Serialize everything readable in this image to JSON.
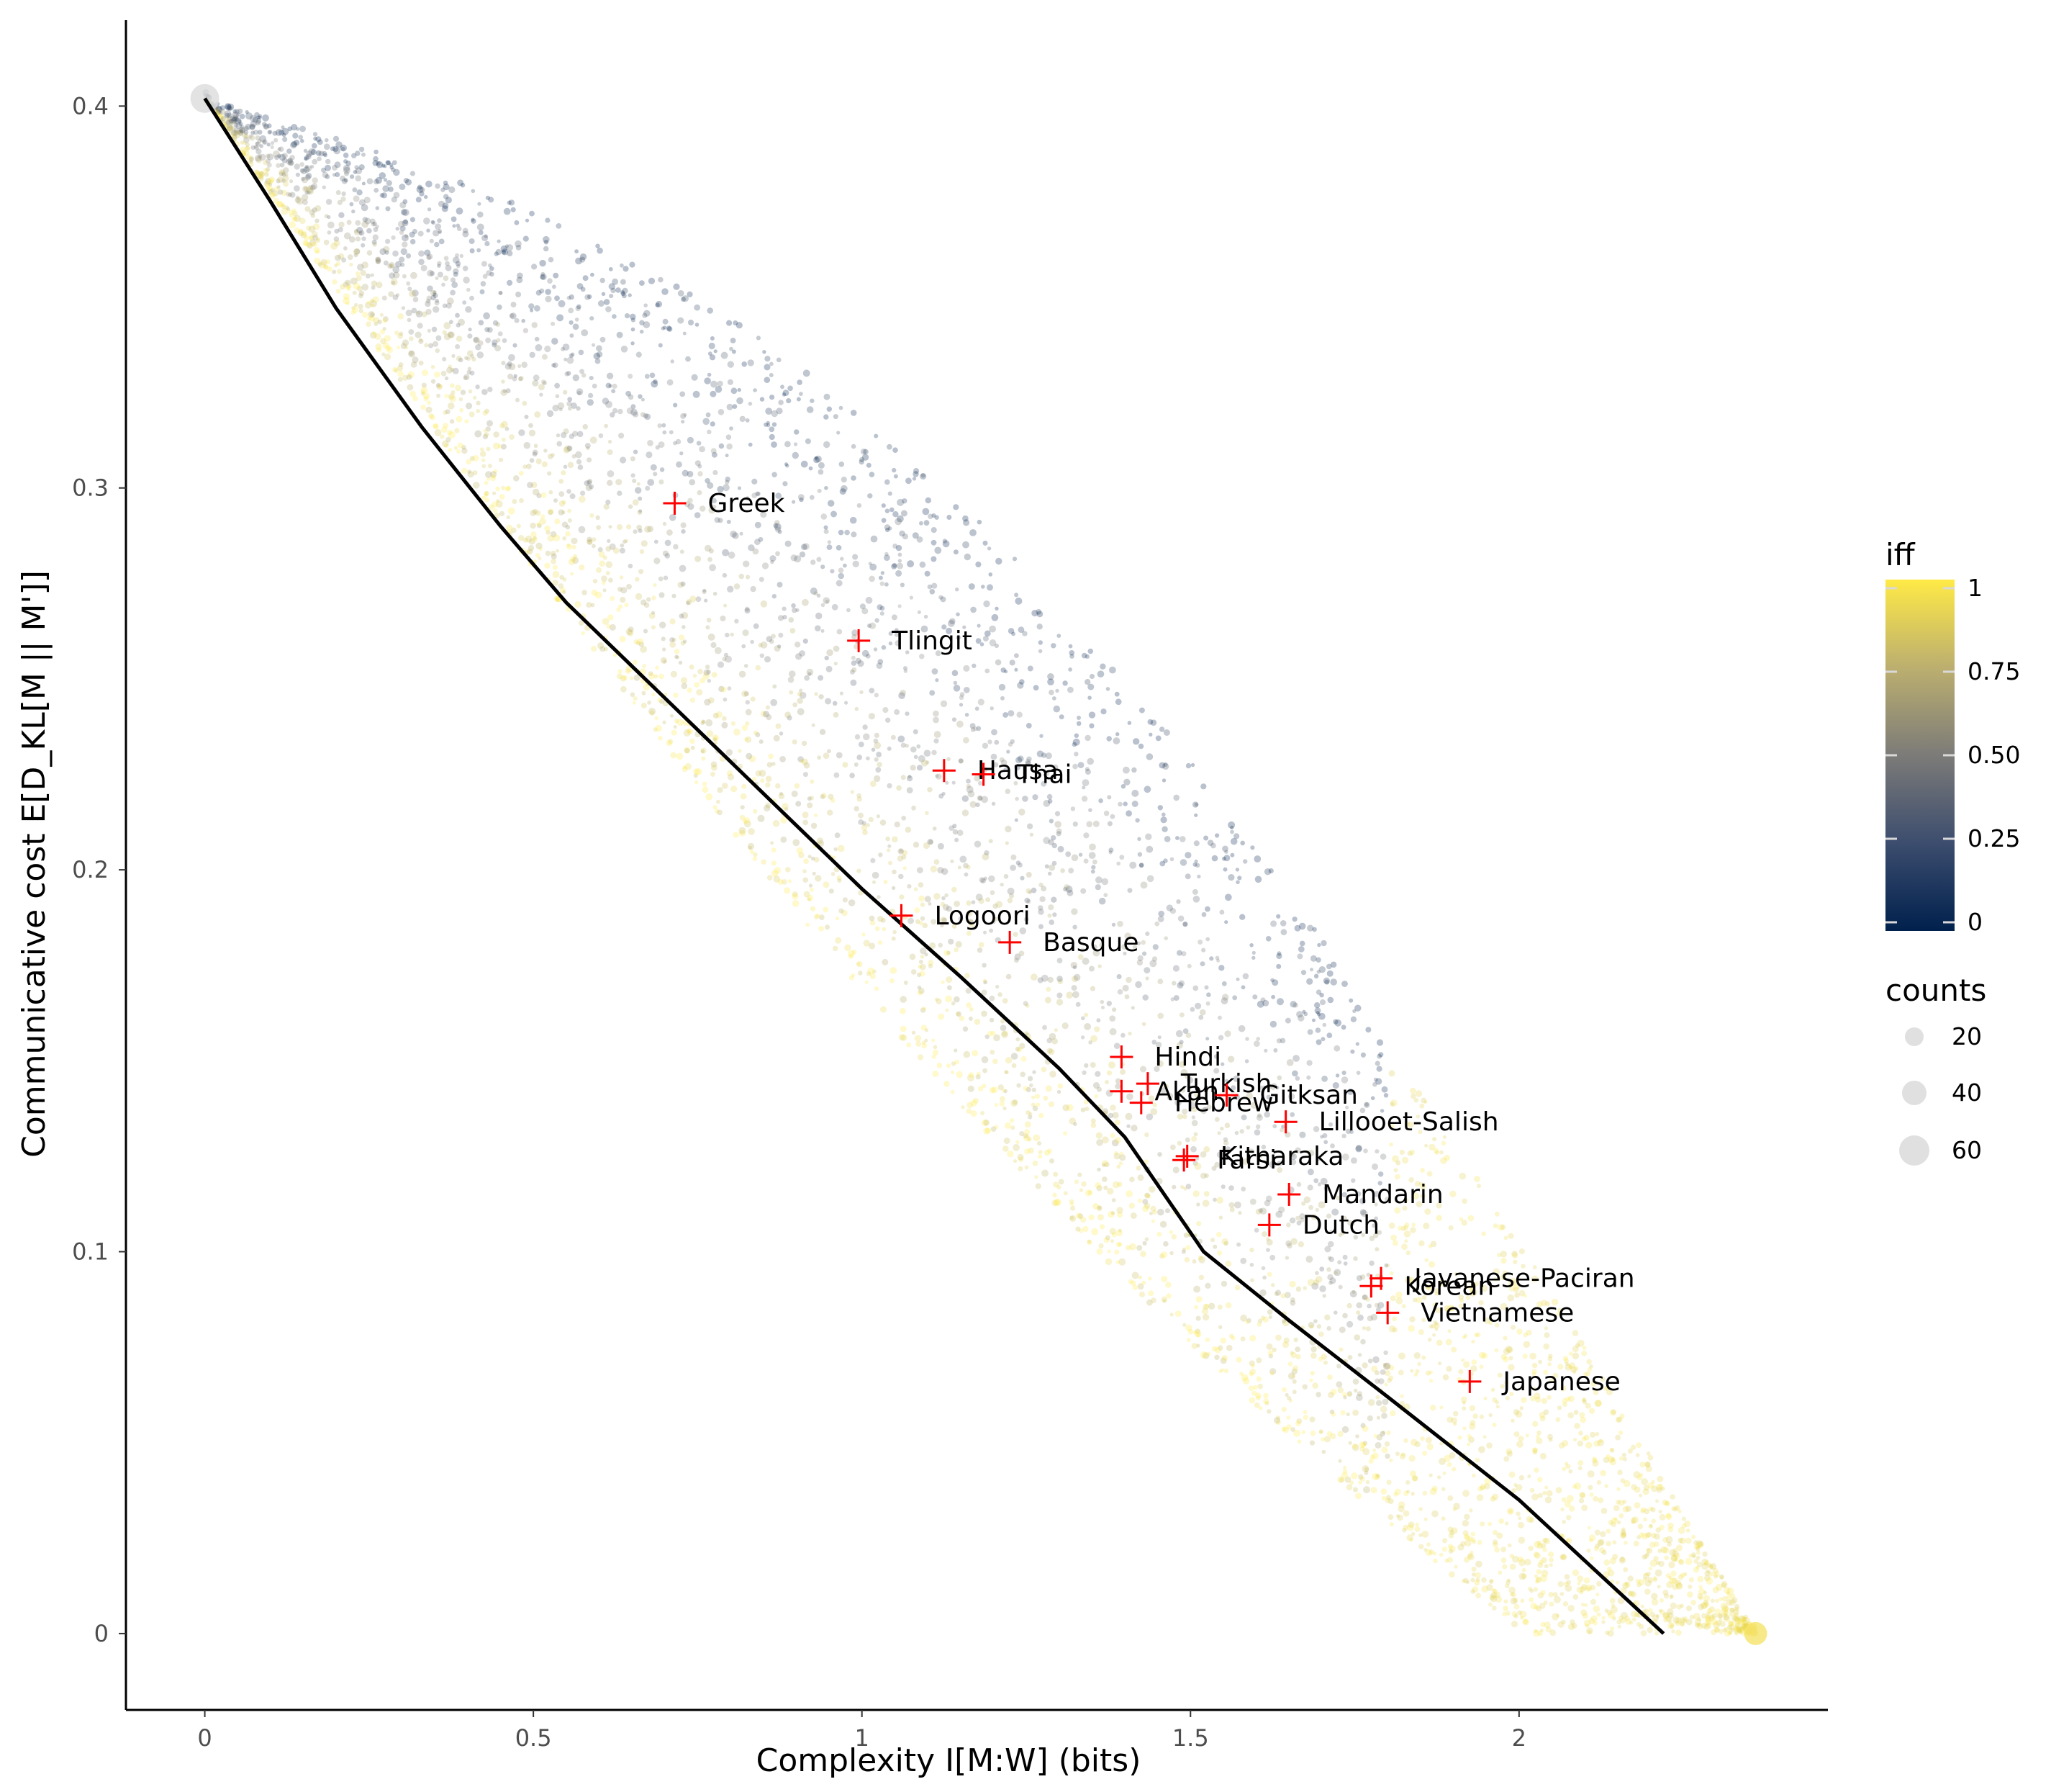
{
  "chart_data": {
    "type": "scatter",
    "xlabel": "Complexity I[M:W] (bits)",
    "ylabel": "Communicative cost E[D_KL[M || M']]",
    "xlim": [
      -0.12,
      2.47
    ],
    "ylim": [
      -0.02,
      0.4225
    ],
    "x_ticks": [
      0,
      0.5,
      1,
      1.5,
      2
    ],
    "x_tick_labels": [
      "0",
      "0.5",
      "1",
      "1.5",
      "2"
    ],
    "y_ticks": [
      0,
      0.1,
      0.2,
      0.3,
      0.4
    ],
    "y_tick_labels": [
      "0",
      "0.1",
      "0.2",
      "0.3",
      "0.4"
    ],
    "grid": false,
    "frontier": {
      "color": "#000000",
      "points": [
        [
          0,
          0.402
        ],
        [
          0.1,
          0.375
        ],
        [
          0.2,
          0.347
        ],
        [
          0.33,
          0.316
        ],
        [
          0.45,
          0.29
        ],
        [
          0.55,
          0.27
        ],
        [
          0.7,
          0.245
        ],
        [
          0.85,
          0.22
        ],
        [
          1.0,
          0.195
        ],
        [
          1.15,
          0.172
        ],
        [
          1.3,
          0.148
        ],
        [
          1.4,
          0.13
        ],
        [
          1.52,
          0.1
        ],
        [
          1.65,
          0.082
        ],
        [
          1.8,
          0.062
        ],
        [
          2.0,
          0.035
        ],
        [
          2.22,
          0.0
        ]
      ]
    },
    "languages": {
      "marker": "+",
      "color": "#ff0000",
      "points": [
        {
          "name": "Greek",
          "x": 0.715,
          "y": 0.296
        },
        {
          "name": "Tlingit",
          "x": 0.995,
          "y": 0.26
        },
        {
          "name": "Hausa",
          "x": 1.125,
          "y": 0.226
        },
        {
          "name": "Thai",
          "x": 1.185,
          "y": 0.225
        },
        {
          "name": "Logoori",
          "x": 1.06,
          "y": 0.188
        },
        {
          "name": "Basque",
          "x": 1.225,
          "y": 0.181
        },
        {
          "name": "Hindi",
          "x": 1.395,
          "y": 0.151
        },
        {
          "name": "Turkish",
          "x": 1.435,
          "y": 0.144
        },
        {
          "name": "Akan",
          "x": 1.395,
          "y": 0.142
        },
        {
          "name": "Gitksan",
          "x": 1.555,
          "y": 0.141
        },
        {
          "name": "Hebrew",
          "x": 1.425,
          "y": 0.139
        },
        {
          "name": "Lillooet-Salish",
          "x": 1.645,
          "y": 0.134
        },
        {
          "name": "Kitharaka",
          "x": 1.495,
          "y": 0.125
        },
        {
          "name": "Farsi",
          "x": 1.49,
          "y": 0.124
        },
        {
          "name": "Mandarin",
          "x": 1.65,
          "y": 0.115
        },
        {
          "name": "Dutch",
          "x": 1.62,
          "y": 0.107
        },
        {
          "name": "Javanese-Paciran",
          "x": 1.79,
          "y": 0.093
        },
        {
          "name": "Korean",
          "x": 1.775,
          "y": 0.091
        },
        {
          "name": "Vietnamese",
          "x": 1.8,
          "y": 0.084
        },
        {
          "name": "Japanese",
          "x": 1.925,
          "y": 0.066
        }
      ]
    },
    "simulated_points": {
      "description_of_color": "iff",
      "color_scale": {
        "low": "#00204d",
        "mid": "#7c7b78",
        "high": "#ffea46"
      },
      "extent": {
        "x": [
          0,
          2.36
        ],
        "y": [
          0,
          0.402
        ]
      }
    },
    "legend_color": {
      "title": "iff",
      "position": "right",
      "ticks": [
        1,
        0.75,
        0.5,
        0.25,
        0
      ],
      "tick_labels": [
        "1",
        "0.75",
        "0.50",
        "0.25",
        "0"
      ]
    },
    "legend_size": {
      "title": "counts",
      "position": "right",
      "values": [
        20,
        40,
        60
      ],
      "labels": [
        "20",
        "40",
        "60"
      ],
      "color": "#e0e0e0"
    }
  }
}
